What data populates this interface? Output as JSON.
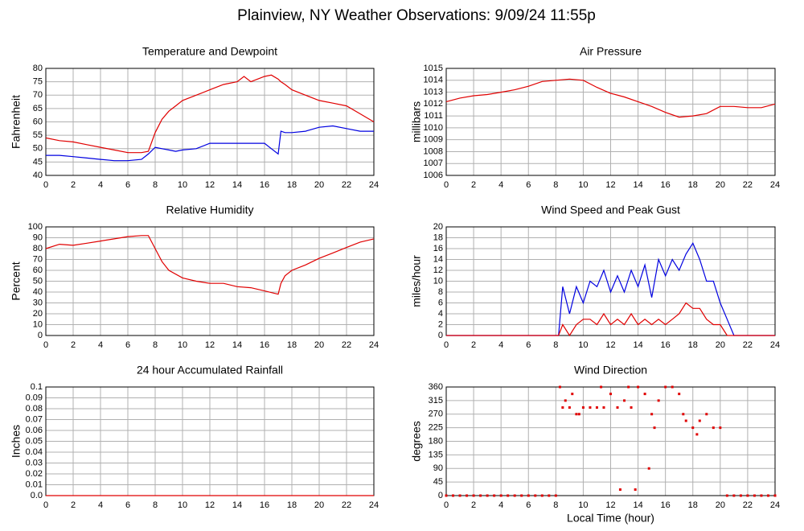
{
  "title": "Plainview, NY Weather Observations: 9/09/24 11:55p",
  "chart_data": [
    {
      "type": "line",
      "title": "Temperature and Dewpoint",
      "y_label": "Fahrenheit",
      "x": [
        0,
        1,
        2,
        3,
        4,
        5,
        6,
        7,
        7.5,
        8,
        8.5,
        9,
        9.5,
        10,
        11,
        12,
        13,
        14,
        14.5,
        15,
        16,
        16.5,
        17,
        17.2,
        17.5,
        18,
        19,
        20,
        21,
        22,
        23,
        24
      ],
      "series": [
        {
          "name": "Temperature",
          "color": "#e00000",
          "values": [
            54,
            53,
            52.5,
            51.5,
            50.5,
            49.5,
            48.5,
            48.5,
            49,
            56,
            61,
            64,
            66,
            68,
            70,
            72,
            74,
            75,
            77,
            75,
            77,
            77.5,
            76,
            75,
            74,
            72,
            70,
            68,
            67,
            66,
            63,
            60
          ]
        },
        {
          "name": "Dewpoint",
          "color": "#0000e0",
          "values": [
            47.5,
            47.5,
            47,
            46.5,
            46,
            45.5,
            45.5,
            46,
            48,
            50.5,
            50,
            49.5,
            49,
            49.5,
            50,
            52,
            52,
            52,
            52,
            52,
            52,
            50,
            48,
            56.5,
            56,
            56,
            56.5,
            58,
            58.5,
            57.5,
            56.5,
            56.5
          ]
        }
      ],
      "xlim": [
        0,
        24
      ],
      "xticks": [
        0,
        2,
        4,
        6,
        8,
        10,
        12,
        14,
        16,
        18,
        20,
        22,
        24
      ],
      "ylim": [
        40,
        80
      ],
      "yticks": [
        40,
        45,
        50,
        55,
        60,
        65,
        70,
        75,
        80
      ],
      "grid": true
    },
    {
      "type": "line",
      "title": "Air Pressure",
      "y_label": "millibars",
      "x": [
        0,
        1,
        2,
        3,
        4,
        5,
        6,
        7,
        8,
        9,
        10,
        11,
        12,
        13,
        14,
        15,
        16,
        17,
        18,
        19,
        20,
        21,
        22,
        23,
        24
      ],
      "series": [
        {
          "name": "Pressure",
          "color": "#e00000",
          "values": [
            1012.2,
            1012.5,
            1012.7,
            1012.8,
            1013,
            1013.2,
            1013.5,
            1013.9,
            1014,
            1014.1,
            1014,
            1013.4,
            1012.9,
            1012.6,
            1012.2,
            1011.8,
            1011.3,
            1010.9,
            1011,
            1011.2,
            1011.8,
            1011.8,
            1011.7,
            1011.7,
            1012
          ]
        }
      ],
      "xlim": [
        0,
        24
      ],
      "xticks": [
        0,
        2,
        4,
        6,
        8,
        10,
        12,
        14,
        16,
        18,
        20,
        22,
        24
      ],
      "ylim": [
        1006,
        1015
      ],
      "yticks": [
        1006,
        1007,
        1008,
        1009,
        1010,
        1011,
        1012,
        1013,
        1014,
        1015
      ],
      "grid": true
    },
    {
      "type": "line",
      "title": "Relative Humidity",
      "y_label": "Percent",
      "x": [
        0,
        1,
        2,
        3,
        4,
        5,
        6,
        7,
        7.5,
        8,
        8.5,
        9,
        10,
        11,
        12,
        13,
        14,
        15,
        16,
        17,
        17.2,
        17.5,
        18,
        19,
        20,
        21,
        22,
        23,
        24
      ],
      "series": [
        {
          "name": "Humidity",
          "color": "#e00000",
          "values": [
            80,
            84,
            83,
            85,
            87,
            89,
            91,
            92,
            92,
            80,
            68,
            60,
            53,
            50,
            48,
            48,
            45,
            44,
            41,
            38,
            48,
            55,
            60,
            65,
            71,
            76,
            81,
            86,
            89
          ]
        }
      ],
      "xlim": [
        0,
        24
      ],
      "xticks": [
        0,
        2,
        4,
        6,
        8,
        10,
        12,
        14,
        16,
        18,
        20,
        22,
        24
      ],
      "ylim": [
        0,
        100
      ],
      "yticks": [
        0,
        10,
        20,
        30,
        40,
        50,
        60,
        70,
        80,
        90,
        100
      ],
      "grid": true
    },
    {
      "type": "line",
      "title": "Wind Speed and Peak Gust",
      "y_label": "miles/hour",
      "x": [
        0,
        8.2,
        8.5,
        9,
        9.5,
        10,
        10.5,
        11,
        11.5,
        12,
        12.5,
        13,
        13.5,
        14,
        14.5,
        15,
        15.5,
        16,
        16.5,
        17,
        17.5,
        18,
        18.5,
        19,
        19.5,
        20,
        20.5,
        21,
        24
      ],
      "series": [
        {
          "name": "Peak Gust",
          "color": "#0000e0",
          "values": [
            0,
            0,
            9,
            4,
            9,
            6,
            10,
            9,
            12,
            8,
            11,
            8,
            12,
            9,
            13,
            7,
            14,
            11,
            14,
            12,
            15,
            17,
            14,
            10,
            10,
            6,
            3,
            0,
            0
          ]
        },
        {
          "name": "Wind Speed",
          "color": "#e00000",
          "values": [
            0,
            0,
            2,
            0,
            2,
            3,
            3,
            2,
            4,
            2,
            3,
            2,
            4,
            2,
            3,
            2,
            3,
            2,
            3,
            4,
            6,
            5,
            5,
            3,
            2,
            2,
            0,
            0,
            0
          ]
        }
      ],
      "xlim": [
        0,
        24
      ],
      "xticks": [
        0,
        2,
        4,
        6,
        8,
        10,
        12,
        14,
        16,
        18,
        20,
        22,
        24
      ],
      "ylim": [
        0,
        20
      ],
      "yticks": [
        0,
        2,
        4,
        6,
        8,
        10,
        12,
        14,
        16,
        18,
        20
      ],
      "grid": true
    },
    {
      "type": "line",
      "title": "24 hour Accumulated Rainfall",
      "y_label": "Inches",
      "x": [
        0,
        24
      ],
      "series": [
        {
          "name": "Rainfall",
          "color": "#e00000",
          "values": [
            0,
            0
          ]
        }
      ],
      "xlim": [
        0,
        24
      ],
      "xticks": [
        0,
        2,
        4,
        6,
        8,
        10,
        12,
        14,
        16,
        18,
        20,
        22,
        24
      ],
      "ylim": [
        0,
        0.1
      ],
      "yticks": [
        {
          "value": 0,
          "label": "0.0"
        },
        0.01,
        0.02,
        0.03,
        0.04,
        0.05,
        0.06,
        0.07,
        0.08,
        0.09,
        0.1
      ],
      "grid": true
    },
    {
      "type": "scatter",
      "title": "Wind Direction",
      "y_label": "degrees",
      "x_label": "Local Time (hour)",
      "x": [
        0,
        0.5,
        1,
        1.5,
        2,
        2.5,
        3,
        3.5,
        4,
        4.5,
        5,
        5.5,
        6,
        6.5,
        7,
        7.5,
        8,
        8.3,
        8.5,
        8.7,
        9,
        9.2,
        9.5,
        9.7,
        10,
        10.5,
        11,
        11.3,
        11.5,
        12,
        12.5,
        12.7,
        13,
        13.3,
        13.5,
        13.8,
        14,
        14.5,
        14.8,
        15,
        15.2,
        15.5,
        16,
        16.5,
        17,
        17.3,
        17.5,
        18,
        18.3,
        18.5,
        19,
        19.5,
        20,
        20.5,
        21,
        21.5,
        22,
        22.5,
        23,
        23.5,
        24
      ],
      "series": [
        {
          "name": "Direction",
          "color": "#e00000",
          "values": [
            0,
            0,
            0,
            0,
            0,
            0,
            0,
            0,
            0,
            0,
            0,
            0,
            0,
            0,
            0,
            0,
            0,
            360,
            292,
            315,
            292,
            337,
            270,
            270,
            292,
            292,
            292,
            360,
            292,
            337,
            292,
            20,
            315,
            360,
            292,
            20,
            360,
            337,
            90,
            270,
            225,
            315,
            360,
            360,
            337,
            270,
            248,
            225,
            203,
            248,
            270,
            225,
            225,
            0,
            0,
            0,
            0,
            0,
            0,
            0,
            0
          ]
        }
      ],
      "xlim": [
        0,
        24
      ],
      "xticks": [
        0,
        2,
        4,
        6,
        8,
        10,
        12,
        14,
        16,
        18,
        20,
        22,
        24
      ],
      "ylim": [
        0,
        360
      ],
      "yticks": [
        0,
        45,
        90,
        135,
        180,
        225,
        270,
        315,
        360
      ],
      "grid": true
    }
  ]
}
